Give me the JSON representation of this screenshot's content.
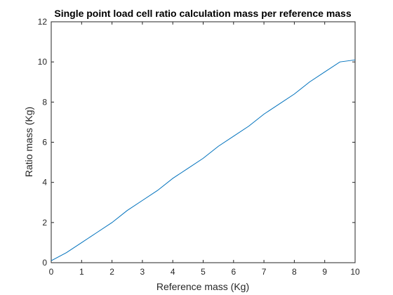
{
  "chart_data": {
    "type": "line",
    "title": "Single point load cell ratio calculation mass per reference mass",
    "xlabel": "Reference mass (Kg)",
    "ylabel": "Ratio mass (Kg)",
    "xlim": [
      0,
      10
    ],
    "ylim": [
      0,
      12
    ],
    "xticks": [
      0,
      1,
      2,
      3,
      4,
      5,
      6,
      7,
      8,
      9,
      10
    ],
    "yticks": [
      0,
      2,
      4,
      6,
      8,
      10,
      12
    ],
    "grid": false,
    "legend": "none",
    "series": [
      {
        "color": "#0072bd",
        "x": [
          0,
          0.5,
          1,
          1.5,
          2,
          2.5,
          3,
          3.5,
          4,
          4.5,
          5,
          5.5,
          6,
          6.5,
          7,
          7.5,
          8,
          8.5,
          9,
          9.5,
          10
        ],
        "y": [
          0.1,
          0.5,
          1.0,
          1.5,
          2.0,
          2.6,
          3.1,
          3.6,
          4.2,
          4.7,
          5.2,
          5.8,
          6.3,
          6.8,
          7.4,
          7.9,
          8.4,
          9.0,
          9.5,
          10.0,
          10.1
        ]
      }
    ]
  }
}
